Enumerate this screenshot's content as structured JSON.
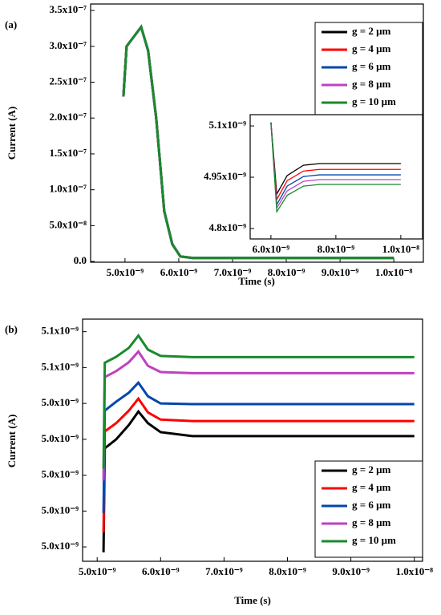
{
  "chart_data": [
    {
      "type": "line",
      "panel_label": "(a)",
      "x_label": "Time (s)",
      "y_label": "Current (A)",
      "x": [
        4.97e-09,
        5.03e-09,
        5.3e-09,
        5.43e-09,
        5.58e-09,
        5.73e-09,
        5.88e-09,
        6.03e-09,
        6.25e-09,
        1e-08
      ],
      "series": [
        {
          "name": "g = 2 μm",
          "color": "#000000",
          "values": [
            2.3e-07,
            3e-07,
            3.27e-07,
            2.94e-07,
            2e-07,
            7e-08,
            2.4e-08,
            7e-09,
            4.99e-09,
            4.99e-09
          ]
        },
        {
          "name": "g = 4 μm",
          "color": "#ff0000",
          "values": [
            2.3e-07,
            3e-07,
            3.27e-07,
            2.94e-07,
            2e-07,
            7e-08,
            2.4e-08,
            7e-09,
            4.973e-09,
            4.973e-09
          ]
        },
        {
          "name": "g = 6 μm",
          "color": "#0047ab",
          "values": [
            2.3e-07,
            3e-07,
            3.27e-07,
            2.94e-07,
            2e-07,
            7e-08,
            2.4e-08,
            7e-09,
            4.957e-09,
            4.957e-09
          ]
        },
        {
          "name": "g = 8 μm",
          "color": "#c040c0",
          "values": [
            2.3e-07,
            3e-07,
            3.27e-07,
            2.94e-07,
            2e-07,
            7e-08,
            2.4e-08,
            7e-09,
            4.943e-09,
            4.943e-09
          ]
        },
        {
          "name": "g = 10 μm",
          "color": "#1a8a2e",
          "values": [
            2.3e-07,
            3e-07,
            3.27e-07,
            2.94e-07,
            2e-07,
            7e-08,
            2.4e-08,
            7e-09,
            4.929e-09,
            4.929e-09
          ]
        }
      ],
      "xlim": [
        4.36e-09,
        1.055e-08
      ],
      "xticks": [
        {
          "value": 5e-09,
          "label": "5.0x10⁻⁹"
        },
        {
          "value": 6e-09,
          "label": "6.0x10⁻⁹"
        },
        {
          "value": 7e-09,
          "label": "7.0x10⁻⁹"
        },
        {
          "value": 8e-09,
          "label": "8.0x10⁻⁹"
        },
        {
          "value": 9e-09,
          "label": "9.0x10⁻⁹"
        },
        {
          "value": 1e-08,
          "label": "1.0x10⁻⁸"
        }
      ],
      "ylim": [
        -1e-09,
        3.59e-07
      ],
      "yticks": [
        {
          "value": 0,
          "label": "0.0"
        },
        {
          "value": 5e-08,
          "label": "5.0x10⁻⁸"
        },
        {
          "value": 1e-07,
          "label": "1.0x10⁻⁷"
        },
        {
          "value": 1.5e-07,
          "label": "1.5x10⁻⁷"
        },
        {
          "value": 2e-07,
          "label": "2.0x10⁻⁷"
        },
        {
          "value": 2.5e-07,
          "label": "2.5x10⁻⁷"
        },
        {
          "value": 3e-07,
          "label": "3.0x10⁻⁷"
        },
        {
          "value": 3.5e-07,
          "label": "3.5x10⁻⁷"
        }
      ],
      "legend": "upper right"
    },
    {
      "type": "line",
      "x": [
        6e-09,
        6.18e-09,
        6.5e-09,
        7e-09,
        7.5e-09,
        8e-09,
        1e-08
      ],
      "series": [
        {
          "color": "#000000",
          "values": [
            5.11e-09,
            4.901e-09,
            4.955e-09,
            4.985e-09,
            4.99e-09,
            4.99e-09,
            4.99e-09
          ]
        },
        {
          "color": "#ff0000",
          "values": [
            5.11e-09,
            4.885e-09,
            4.94e-09,
            4.968e-09,
            4.973e-09,
            4.973e-09,
            4.973e-09
          ]
        },
        {
          "color": "#0047ab",
          "values": [
            5.11e-09,
            4.87e-09,
            4.924e-09,
            4.952e-09,
            4.957e-09,
            4.957e-09,
            4.957e-09
          ]
        },
        {
          "color": "#c040c0",
          "values": [
            5.11e-09,
            4.86e-09,
            4.91e-09,
            4.938e-09,
            4.943e-09,
            4.943e-09,
            4.943e-09
          ]
        },
        {
          "color": "#1a8a2e",
          "values": [
            5.11e-09,
            4.849e-09,
            4.897e-09,
            4.924e-09,
            4.929e-09,
            4.929e-09,
            4.929e-09
          ]
        }
      ],
      "xlim": [
        5.36e-09,
        1.067e-08
      ],
      "xticks": [
        {
          "value": 6e-09,
          "label": "6.0x10⁻⁹"
        },
        {
          "value": 8e-09,
          "label": "8.0x10⁻⁹"
        },
        {
          "value": 1e-08,
          "label": "1.0x10⁻⁸"
        }
      ],
      "ylim": [
        4.7695e-09,
        5.133e-09
      ],
      "yticks": [
        {
          "value": 4.8e-09,
          "label": "4.8x10⁻⁹"
        },
        {
          "value": 4.95e-09,
          "label": "4.95x10⁻⁹"
        },
        {
          "value": 5.1e-09,
          "label": "5.1x10⁻⁹"
        }
      ]
    },
    {
      "type": "line",
      "panel_label": "(b)",
      "x_label": "Time (s)",
      "y_label": "Current (A)",
      "x": [
        5.1e-09,
        5.12e-09,
        5.3e-09,
        5.5e-09,
        5.65e-09,
        5.8e-09,
        6e-09,
        6.5e-09,
        1e-08
      ],
      "series": [
        {
          "name": "g = 2 μm",
          "color": "#000000",
          "values": [
            4.957e-09,
            5.015e-09,
            5.02e-09,
            5.028e-09,
            5.0355e-09,
            5.029e-09,
            5.024e-09,
            5.0218e-09,
            5.0218e-09
          ]
        },
        {
          "name": "g = 4 μm",
          "color": "#ff0000",
          "values": [
            4.968e-09,
            5.0244e-09,
            5.029e-09,
            5.036e-09,
            5.0427e-09,
            5.035e-09,
            5.031e-09,
            5.0302e-09,
            5.0302e-09
          ]
        },
        {
          "name": "g = 6 μm",
          "color": "#0047ab",
          "values": [
            4.979e-09,
            5.036e-09,
            5.041e-09,
            5.046e-09,
            5.0516e-09,
            5.044e-09,
            5.04e-09,
            5.0396e-09,
            5.0396e-09
          ]
        },
        {
          "name": "g = 8 μm",
          "color": "#c040c0",
          "values": [
            4.997e-09,
            5.0547e-09,
            5.058e-09,
            5.063e-09,
            5.0689e-09,
            5.061e-09,
            5.0575e-09,
            5.0569e-09,
            5.0569e-09
          ]
        },
        {
          "name": "g = 10 μm",
          "color": "#1a8a2e",
          "values": [
            5.0036e-09,
            5.0627e-09,
            5.066e-09,
            5.071e-09,
            5.0778e-09,
            5.07e-09,
            5.0665e-09,
            5.0658e-09,
            5.0658e-09
          ]
        }
      ],
      "xlim": [
        4.77e-09,
        1.013e-08
      ],
      "xticks": [
        {
          "value": 5e-09,
          "label": "5.0x10⁻⁹"
        },
        {
          "value": 6e-09,
          "label": "6.0x10⁻⁹"
        },
        {
          "value": 7e-09,
          "label": "7.0x10⁻⁹"
        },
        {
          "value": 8e-09,
          "label": "8.0x10⁻⁹"
        },
        {
          "value": 9e-09,
          "label": "9.0x10⁻⁹"
        },
        {
          "value": 1e-08,
          "label": "1.0x10⁻⁸"
        }
      ],
      "ylim": [
        4.952e-09,
        5.087e-09
      ],
      "yticks": [
        {
          "value": 4.96e-09,
          "label": "5.0x10⁻⁹"
        },
        {
          "value": 4.98e-09,
          "label": "5.0x10⁻⁹"
        },
        {
          "value": 5e-09,
          "label": "5.0x10⁻⁹"
        },
        {
          "value": 5.02e-09,
          "label": "5.0x10⁻⁹"
        },
        {
          "value": 5.04e-09,
          "label": "5.0x10⁻⁹"
        },
        {
          "value": 5.06e-09,
          "label": "5.1x10⁻⁹"
        },
        {
          "value": 5.08e-09,
          "label": "5.1x10⁻⁹"
        }
      ],
      "legend": "lower right"
    }
  ]
}
